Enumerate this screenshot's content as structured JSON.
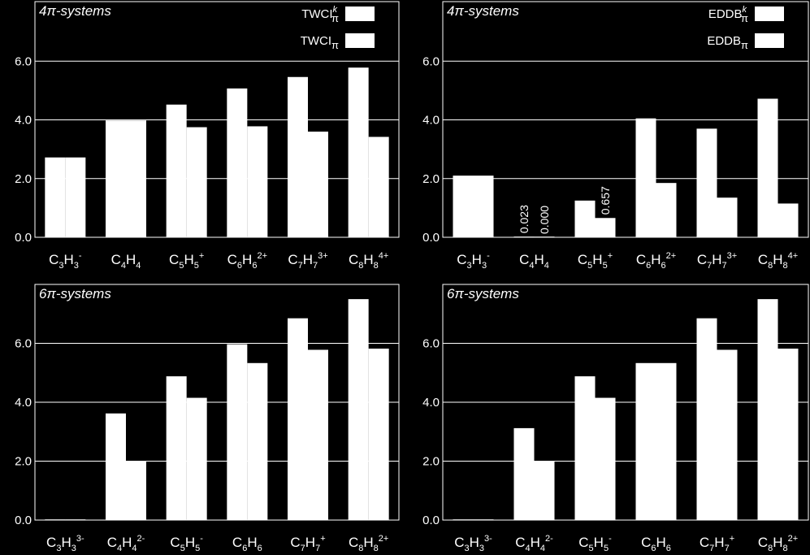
{
  "chart_data": [
    {
      "type": "bar",
      "title": "4π-systems",
      "categories": [
        {
          "base": "C3H3",
          "parts": [
            [
              "C",
              ""
            ],
            [
              "3",
              "sub"
            ],
            [
              "H",
              ""
            ],
            [
              "3",
              "sub"
            ],
            [
              "-",
              "sup"
            ]
          ]
        },
        {
          "base": "C4H4",
          "parts": [
            [
              "C",
              ""
            ],
            [
              "4",
              "sub"
            ],
            [
              "H",
              ""
            ],
            [
              "4",
              "sub"
            ]
          ]
        },
        {
          "base": "C5H5+",
          "parts": [
            [
              "C",
              ""
            ],
            [
              "5",
              "sub"
            ],
            [
              "H",
              ""
            ],
            [
              "5",
              "sub"
            ],
            [
              "+",
              "sup"
            ]
          ]
        },
        {
          "base": "C6H6 2+",
          "parts": [
            [
              "C",
              ""
            ],
            [
              "6",
              "sub"
            ],
            [
              "H",
              ""
            ],
            [
              "6",
              "sub"
            ],
            [
              "2+",
              "sup"
            ]
          ]
        },
        {
          "base": "C7H7 3+",
          "parts": [
            [
              "C",
              ""
            ],
            [
              "7",
              "sub"
            ],
            [
              "H",
              ""
            ],
            [
              "7",
              "sub"
            ],
            [
              "3+",
              "sup"
            ]
          ]
        },
        {
          "base": "C8H8 4+",
          "parts": [
            [
              "C",
              ""
            ],
            [
              "8",
              "sub"
            ],
            [
              "H",
              ""
            ],
            [
              "8",
              "sub"
            ],
            [
              "4+",
              "sup"
            ]
          ]
        }
      ],
      "series": [
        {
          "name": "TWCI",
          "name_sub": "π",
          "name_sup": "k",
          "values": [
            2.72,
            3.98,
            4.52,
            5.07,
            5.46,
            5.78
          ]
        },
        {
          "name": "TWCI",
          "name_sub": "π",
          "name_sup": "",
          "values": [
            2.72,
            3.98,
            3.75,
            3.78,
            3.6,
            3.42
          ]
        }
      ],
      "data_labels": [],
      "ylim": [
        0,
        8
      ],
      "yticks": [
        "0.0",
        "2.0",
        "4.0",
        "6.0"
      ],
      "ytick_values": [
        0,
        2,
        4,
        6
      ],
      "grid": true,
      "legend_position": "top-right"
    },
    {
      "type": "bar",
      "title": "4π-systems",
      "categories": [
        {
          "base": "C3H3",
          "parts": [
            [
              "C",
              ""
            ],
            [
              "3",
              "sub"
            ],
            [
              "H",
              ""
            ],
            [
              "3",
              "sub"
            ],
            [
              "-",
              "sup"
            ]
          ]
        },
        {
          "base": "C4H4",
          "parts": [
            [
              "C",
              ""
            ],
            [
              "4",
              "sub"
            ],
            [
              "H",
              ""
            ],
            [
              "4",
              "sub"
            ]
          ]
        },
        {
          "base": "C5H5+",
          "parts": [
            [
              "C",
              ""
            ],
            [
              "5",
              "sub"
            ],
            [
              "H",
              ""
            ],
            [
              "5",
              "sub"
            ],
            [
              "+",
              "sup"
            ]
          ]
        },
        {
          "base": "C6H6 2+",
          "parts": [
            [
              "C",
              ""
            ],
            [
              "6",
              "sub"
            ],
            [
              "H",
              ""
            ],
            [
              "6",
              "sub"
            ],
            [
              "2+",
              "sup"
            ]
          ]
        },
        {
          "base": "C7H7 3+",
          "parts": [
            [
              "C",
              ""
            ],
            [
              "7",
              "sub"
            ],
            [
              "H",
              ""
            ],
            [
              "7",
              "sub"
            ],
            [
              "3+",
              "sup"
            ]
          ]
        },
        {
          "base": "C8H8 4+",
          "parts": [
            [
              "C",
              ""
            ],
            [
              "8",
              "sub"
            ],
            [
              "H",
              ""
            ],
            [
              "8",
              "sub"
            ],
            [
              "4+",
              "sup"
            ]
          ]
        }
      ],
      "series": [
        {
          "name": "EDDB",
          "name_sub": "π",
          "name_sup": "k",
          "values": [
            2.1,
            0.023,
            1.25,
            4.05,
            3.7,
            4.72
          ]
        },
        {
          "name": "EDDB",
          "name_sub": "π",
          "name_sup": "",
          "values": [
            2.1,
            0.0,
            0.657,
            1.85,
            1.35,
            1.15
          ]
        }
      ],
      "data_labels": [
        {
          "category": 1,
          "series": 0,
          "text": "0.023"
        },
        {
          "category": 1,
          "series": 1,
          "text": "0.000"
        },
        {
          "category": 2,
          "series": 1,
          "text": "0.657"
        }
      ],
      "ylim": [
        0,
        8
      ],
      "yticks": [
        "0.0",
        "2.0",
        "4.0",
        "6.0"
      ],
      "ytick_values": [
        0,
        2,
        4,
        6
      ],
      "grid": true,
      "legend_position": "top-right"
    },
    {
      "type": "bar",
      "title": "6π-systems",
      "categories": [
        {
          "base": "C3H3 3-",
          "parts": [
            [
              "C",
              ""
            ],
            [
              "3",
              "sub"
            ],
            [
              "H",
              ""
            ],
            [
              "3",
              "sub"
            ],
            [
              "3-",
              "sup"
            ]
          ]
        },
        {
          "base": "C4H4 2-",
          "parts": [
            [
              "C",
              ""
            ],
            [
              "4",
              "sub"
            ],
            [
              "H",
              ""
            ],
            [
              "4",
              "sub"
            ],
            [
              "2-",
              "sup"
            ]
          ]
        },
        {
          "base": "C5H5-",
          "parts": [
            [
              "C",
              ""
            ],
            [
              "5",
              "sub"
            ],
            [
              "H",
              ""
            ],
            [
              "5",
              "sub"
            ],
            [
              "-",
              "sup"
            ]
          ]
        },
        {
          "base": "C6H6",
          "parts": [
            [
              "C",
              ""
            ],
            [
              "6",
              "sub"
            ],
            [
              "H",
              ""
            ],
            [
              "6",
              "sub"
            ]
          ]
        },
        {
          "base": "C7H7+",
          "parts": [
            [
              "C",
              ""
            ],
            [
              "7",
              "sub"
            ],
            [
              "H",
              ""
            ],
            [
              "7",
              "sub"
            ],
            [
              "+",
              "sup"
            ]
          ]
        },
        {
          "base": "C8H8 2+",
          "parts": [
            [
              "C",
              ""
            ],
            [
              "8",
              "sub"
            ],
            [
              "H",
              ""
            ],
            [
              "8",
              "sub"
            ],
            [
              "2+",
              "sup"
            ]
          ]
        }
      ],
      "series": [
        {
          "name": "TWCI",
          "name_sub": "π",
          "name_sup": "k",
          "values": [
            0.02,
            3.62,
            4.88,
            5.97,
            6.85,
            7.5
          ]
        },
        {
          "name": "TWCI",
          "name_sub": "π",
          "name_sup": "",
          "values": [
            0.02,
            2.0,
            4.15,
            5.33,
            5.78,
            5.82
          ]
        }
      ],
      "data_labels": [],
      "ylim": [
        0,
        8
      ],
      "yticks": [
        "0.0",
        "2.0",
        "4.0",
        "6.0"
      ],
      "ytick_values": [
        0,
        2,
        4,
        6
      ],
      "grid": true,
      "legend_position": "none"
    },
    {
      "type": "bar",
      "title": "6π-systems",
      "categories": [
        {
          "base": "C3H3 3-",
          "parts": [
            [
              "C",
              ""
            ],
            [
              "3",
              "sub"
            ],
            [
              "H",
              ""
            ],
            [
              "3",
              "sub"
            ],
            [
              "3-",
              "sup"
            ]
          ]
        },
        {
          "base": "C4H4 2-",
          "parts": [
            [
              "C",
              ""
            ],
            [
              "4",
              "sub"
            ],
            [
              "H",
              ""
            ],
            [
              "4",
              "sub"
            ],
            [
              "2-",
              "sup"
            ]
          ]
        },
        {
          "base": "C5H5-",
          "parts": [
            [
              "C",
              ""
            ],
            [
              "5",
              "sub"
            ],
            [
              "H",
              ""
            ],
            [
              "5",
              "sub"
            ],
            [
              "-",
              "sup"
            ]
          ]
        },
        {
          "base": "C6H6",
          "parts": [
            [
              "C",
              ""
            ],
            [
              "6",
              "sub"
            ],
            [
              "H",
              ""
            ],
            [
              "6",
              "sub"
            ]
          ]
        },
        {
          "base": "C7H7+",
          "parts": [
            [
              "C",
              ""
            ],
            [
              "7",
              "sub"
            ],
            [
              "H",
              ""
            ],
            [
              "7",
              "sub"
            ],
            [
              "+",
              "sup"
            ]
          ]
        },
        {
          "base": "C8H8 2+",
          "parts": [
            [
              "C",
              ""
            ],
            [
              "8",
              "sub"
            ],
            [
              "H",
              ""
            ],
            [
              "8",
              "sub"
            ],
            [
              "2+",
              "sup"
            ]
          ]
        }
      ],
      "series": [
        {
          "name": "EDDB",
          "name_sub": "π",
          "name_sup": "k",
          "values": [
            0.02,
            3.12,
            4.88,
            5.33,
            6.85,
            7.5
          ]
        },
        {
          "name": "EDDB",
          "name_sub": "π",
          "name_sup": "",
          "values": [
            0.02,
            2.0,
            4.15,
            5.33,
            5.78,
            5.82
          ]
        }
      ],
      "data_labels": [],
      "ylim": [
        0,
        8
      ],
      "yticks": [
        "0.0",
        "2.0",
        "4.0",
        "6.0"
      ],
      "ytick_values": [
        0,
        2,
        4,
        6
      ],
      "grid": true,
      "legend_position": "none"
    }
  ],
  "colors": {
    "background": "#000000",
    "bar": "#ffffff",
    "grid": "#ffffff",
    "text": "#ffffff"
  }
}
